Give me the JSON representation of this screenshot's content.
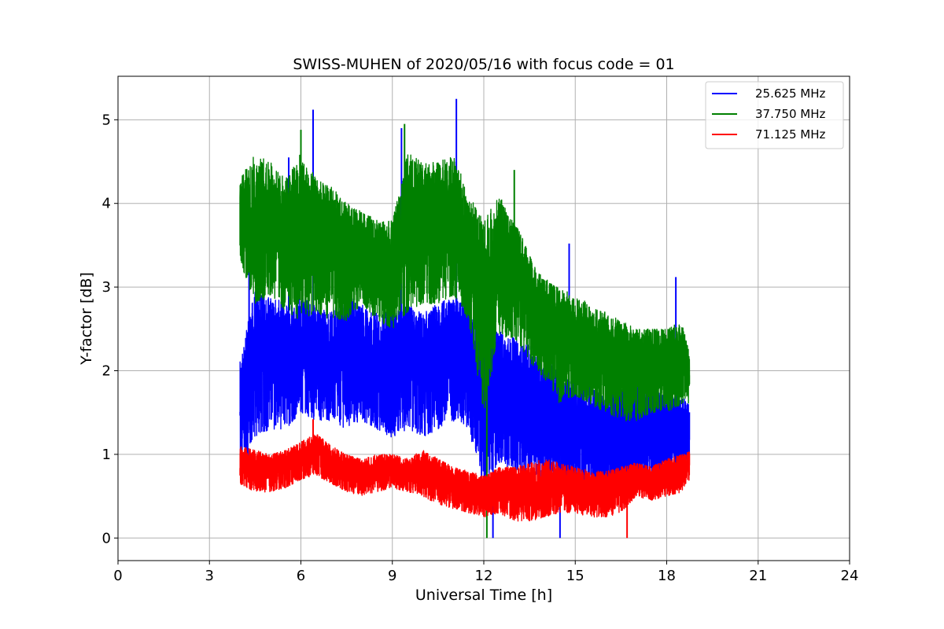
{
  "chart_data": {
    "type": "line",
    "title": "SWISS-MUHEN of 2020/05/16 with focus code = 01",
    "xlabel": "Universal Time [h]",
    "ylabel": "Y-factor [dB]",
    "xlim": [
      0,
      24
    ],
    "ylim": [
      -0.27,
      5.52
    ],
    "xticks": [
      0,
      3,
      6,
      9,
      12,
      15,
      18,
      21,
      24
    ],
    "xtick_labels": [
      "0",
      "3",
      "6",
      "9",
      "12",
      "15",
      "18",
      "21",
      "24"
    ],
    "yticks": [
      0,
      1,
      2,
      3,
      4,
      5
    ],
    "ytick_labels": [
      "0",
      "1",
      "2",
      "3",
      "4",
      "5"
    ],
    "grid": true,
    "legend_position": "top-right",
    "series": [
      {
        "name": "25.625 MHz",
        "color": "#0000ff",
        "x": [
          4.0,
          4.5,
          5.0,
          5.5,
          6.0,
          6.5,
          7.0,
          7.5,
          8.0,
          8.5,
          9.0,
          9.5,
          10.0,
          10.5,
          11.0,
          11.5,
          12.0,
          12.5,
          13.0,
          13.5,
          14.0,
          14.5,
          15.0,
          15.5,
          16.0,
          16.5,
          17.0,
          17.5,
          18.0,
          18.5,
          18.75
        ],
        "y_low": [
          0.7,
          1.2,
          1.3,
          1.3,
          1.5,
          1.4,
          1.4,
          1.3,
          1.4,
          1.3,
          1.2,
          1.3,
          1.2,
          1.3,
          1.4,
          1.3,
          0.6,
          0.9,
          0.8,
          0.8,
          0.7,
          0.6,
          0.6,
          0.5,
          0.5,
          0.5,
          0.6,
          0.7,
          0.6,
          0.7,
          0.8
        ],
        "y_high": [
          2.1,
          3.0,
          2.9,
          2.8,
          2.9,
          2.8,
          2.7,
          2.9,
          2.8,
          2.7,
          2.7,
          2.8,
          2.7,
          2.8,
          2.9,
          2.8,
          2.4,
          2.5,
          2.4,
          2.3,
          2.2,
          2.0,
          1.9,
          1.8,
          1.7,
          1.8,
          1.9,
          1.8,
          1.7,
          1.7,
          1.6
        ],
        "spikes": [
          [
            6.4,
            5.12
          ],
          [
            11.1,
            5.25
          ],
          [
            9.3,
            4.9
          ],
          [
            5.6,
            4.55
          ],
          [
            4.3,
            3.2
          ],
          [
            14.8,
            3.52
          ],
          [
            18.3,
            3.12
          ],
          [
            12.3,
            0.0
          ],
          [
            14.5,
            0.0
          ]
        ]
      },
      {
        "name": "37.750 MHz",
        "color": "#008000",
        "x": [
          4.0,
          4.5,
          5.0,
          5.5,
          6.0,
          6.5,
          7.0,
          7.5,
          8.0,
          8.5,
          9.0,
          9.5,
          10.0,
          10.5,
          11.0,
          11.5,
          12.0,
          12.5,
          13.0,
          13.5,
          14.0,
          14.5,
          15.0,
          15.5,
          16.0,
          16.5,
          17.0,
          17.5,
          18.0,
          18.5,
          18.75
        ],
        "y_low": [
          3.3,
          2.8,
          2.9,
          2.7,
          2.6,
          2.7,
          2.6,
          2.6,
          2.8,
          2.6,
          2.5,
          2.7,
          2.8,
          2.8,
          2.9,
          2.6,
          1.5,
          2.4,
          2.4,
          2.1,
          1.9,
          1.6,
          1.7,
          1.6,
          1.5,
          1.4,
          1.4,
          1.5,
          1.5,
          1.6,
          1.6
        ],
        "y_high": [
          4.3,
          4.6,
          4.5,
          4.3,
          4.6,
          4.3,
          4.2,
          4.0,
          3.9,
          3.8,
          3.8,
          4.6,
          4.5,
          4.5,
          4.6,
          4.1,
          3.8,
          4.1,
          3.8,
          3.4,
          3.1,
          3.0,
          2.9,
          2.8,
          2.7,
          2.6,
          2.5,
          2.5,
          2.5,
          2.6,
          2.2
        ],
        "spikes": [
          [
            6.0,
            4.88
          ],
          [
            9.4,
            4.95
          ],
          [
            13.0,
            4.4
          ],
          [
            12.1,
            0.0
          ]
        ]
      },
      {
        "name": "71.125 MHz",
        "color": "#ff0000",
        "x": [
          4.0,
          4.5,
          5.0,
          5.5,
          6.0,
          6.5,
          7.0,
          7.5,
          8.0,
          8.5,
          9.0,
          9.5,
          10.0,
          10.5,
          11.0,
          11.5,
          12.0,
          12.5,
          13.0,
          13.5,
          14.0,
          14.5,
          15.0,
          15.5,
          16.0,
          16.5,
          17.0,
          17.5,
          18.0,
          18.5,
          18.75
        ],
        "y_low": [
          0.65,
          0.55,
          0.55,
          0.6,
          0.7,
          0.75,
          0.65,
          0.55,
          0.5,
          0.55,
          0.6,
          0.55,
          0.5,
          0.4,
          0.35,
          0.3,
          0.25,
          0.3,
          0.2,
          0.2,
          0.25,
          0.3,
          0.3,
          0.25,
          0.25,
          0.3,
          0.5,
          0.45,
          0.5,
          0.55,
          0.7
        ],
        "y_high": [
          1.1,
          1.05,
          1.0,
          1.05,
          1.15,
          1.25,
          1.1,
          1.0,
          0.95,
          1.0,
          1.0,
          0.95,
          1.05,
          0.95,
          0.85,
          0.8,
          0.75,
          0.85,
          0.85,
          0.9,
          0.95,
          0.9,
          0.85,
          0.8,
          0.8,
          0.85,
          0.9,
          0.85,
          0.95,
          1.0,
          1.05
        ],
        "spikes": [
          [
            6.4,
            1.42
          ],
          [
            16.7,
            0.0
          ]
        ]
      }
    ]
  }
}
